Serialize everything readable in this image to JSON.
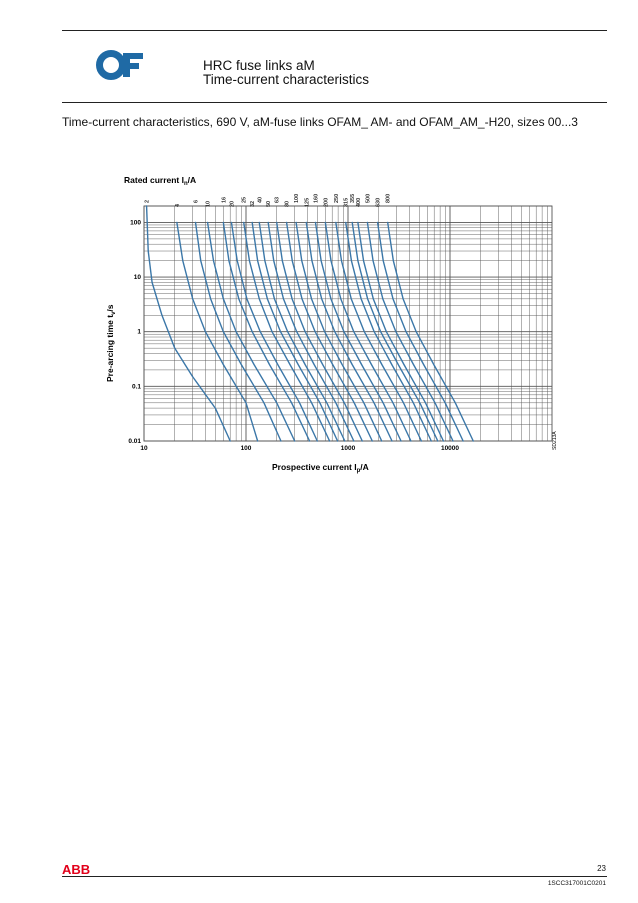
{
  "header": {
    "logo_text": "OF",
    "title": "HRC fuse links aM",
    "subtitle": "Time-current characteristics"
  },
  "caption": "Time-current characteristics, 690 V, aM-fuse links OFAM_ AM- and OFAM_AM_-H20, sizes 00...3",
  "colors": {
    "curve": "#3b77a8",
    "grid": "#555555",
    "logo": "#1f6aa5",
    "abb_red": "#e2001a"
  },
  "chart_data": {
    "type": "line",
    "title": "Rated current In/A",
    "title_main": "Rated current I",
    "title_sub": "n",
    "title_tail": "/A",
    "xlabel": "Prospective current Ip/A",
    "xlabel_main": "Prospective current I",
    "xlabel_sub": "p",
    "xlabel_tail": "/A",
    "ylabel": "Pre-arcing time tv/s",
    "ylabel_main": "Pre-arcing time t",
    "ylabel_sub": "v",
    "ylabel_tail": "/s",
    "x_scale": "log",
    "y_scale": "log",
    "xlim": [
      10,
      100000
    ],
    "ylim": [
      0.01,
      200
    ],
    "x_ticks": [
      "10",
      "100",
      "1000",
      "10000"
    ],
    "y_ticks": [
      "100",
      "10",
      "1",
      "0.1",
      "0.01"
    ],
    "grid": true,
    "side_code": "SD213A",
    "series": [
      {
        "name": "2",
        "points": [
          [
            10.6,
            200
          ],
          [
            11,
            30
          ],
          [
            12,
            8
          ],
          [
            15,
            2
          ],
          [
            20,
            0.5
          ],
          [
            30,
            0.15
          ],
          [
            50,
            0.04
          ],
          [
            70,
            0.01
          ]
        ]
      },
      {
        "name": "4",
        "points": [
          [
            21,
            100
          ],
          [
            24,
            20
          ],
          [
            30,
            4
          ],
          [
            40,
            1
          ],
          [
            60,
            0.25
          ],
          [
            100,
            0.05
          ],
          [
            130,
            0.01
          ]
        ]
      },
      {
        "name": "6",
        "points": [
          [
            32,
            100
          ],
          [
            36,
            20
          ],
          [
            45,
            4
          ],
          [
            60,
            1
          ],
          [
            90,
            0.25
          ],
          [
            150,
            0.05
          ],
          [
            220,
            0.01
          ]
        ]
      },
      {
        "name": "10",
        "points": [
          [
            42,
            100
          ],
          [
            48,
            20
          ],
          [
            60,
            4
          ],
          [
            80,
            1
          ],
          [
            120,
            0.25
          ],
          [
            200,
            0.05
          ],
          [
            300,
            0.01
          ]
        ]
      },
      {
        "name": "16",
        "points": [
          [
            60,
            100
          ],
          [
            68,
            20
          ],
          [
            85,
            4
          ],
          [
            115,
            1
          ],
          [
            170,
            0.25
          ],
          [
            280,
            0.05
          ],
          [
            420,
            0.01
          ]
        ]
      },
      {
        "name": "20",
        "points": [
          [
            72,
            100
          ],
          [
            82,
            20
          ],
          [
            102,
            4
          ],
          [
            138,
            1
          ],
          [
            205,
            0.25
          ],
          [
            335,
            0.05
          ],
          [
            500,
            0.01
          ]
        ]
      },
      {
        "name": "25",
        "points": [
          [
            95,
            100
          ],
          [
            108,
            20
          ],
          [
            135,
            4
          ],
          [
            180,
            1
          ],
          [
            270,
            0.25
          ],
          [
            440,
            0.05
          ],
          [
            660,
            0.01
          ]
        ]
      },
      {
        "name": "32",
        "points": [
          [
            115,
            100
          ],
          [
            130,
            20
          ],
          [
            162,
            4
          ],
          [
            218,
            1
          ],
          [
            325,
            0.25
          ],
          [
            530,
            0.05
          ],
          [
            790,
            0.01
          ]
        ]
      },
      {
        "name": "40",
        "points": [
          [
            135,
            100
          ],
          [
            153,
            20
          ],
          [
            190,
            4
          ],
          [
            256,
            1
          ],
          [
            380,
            0.25
          ],
          [
            620,
            0.05
          ],
          [
            930,
            0.01
          ]
        ]
      },
      {
        "name": "50",
        "points": [
          [
            165,
            100
          ],
          [
            187,
            20
          ],
          [
            233,
            4
          ],
          [
            314,
            1
          ],
          [
            466,
            0.25
          ],
          [
            760,
            0.05
          ],
          [
            1140,
            0.01
          ]
        ]
      },
      {
        "name": "63",
        "points": [
          [
            200,
            100
          ],
          [
            227,
            20
          ],
          [
            283,
            4
          ],
          [
            380,
            1
          ],
          [
            565,
            0.25
          ],
          [
            920,
            0.05
          ],
          [
            1380,
            0.01
          ]
        ]
      },
      {
        "name": "80",
        "points": [
          [
            250,
            100
          ],
          [
            284,
            20
          ],
          [
            354,
            4
          ],
          [
            476,
            1
          ],
          [
            708,
            0.25
          ],
          [
            1150,
            0.05
          ],
          [
            1730,
            0.01
          ]
        ]
      },
      {
        "name": "100",
        "points": [
          [
            310,
            100
          ],
          [
            352,
            20
          ],
          [
            439,
            4
          ],
          [
            590,
            1
          ],
          [
            877,
            0.25
          ],
          [
            1430,
            0.05
          ],
          [
            2140,
            0.01
          ]
        ]
      },
      {
        "name": "125",
        "points": [
          [
            390,
            100
          ],
          [
            443,
            20
          ],
          [
            552,
            4
          ],
          [
            742,
            1
          ],
          [
            1100,
            0.25
          ],
          [
            1800,
            0.05
          ],
          [
            2700,
            0.01
          ]
        ]
      },
      {
        "name": "160",
        "points": [
          [
            480,
            100
          ],
          [
            545,
            20
          ],
          [
            680,
            4
          ],
          [
            913,
            1
          ],
          [
            1360,
            0.25
          ],
          [
            2210,
            0.05
          ],
          [
            3310,
            0.01
          ]
        ]
      },
      {
        "name": "200",
        "points": [
          [
            600,
            100
          ],
          [
            681,
            20
          ],
          [
            850,
            4
          ],
          [
            1140,
            1
          ],
          [
            1700,
            0.25
          ],
          [
            2760,
            0.05
          ],
          [
            4140,
            0.01
          ]
        ]
      },
      {
        "name": "250",
        "points": [
          [
            760,
            100
          ],
          [
            863,
            20
          ],
          [
            1076,
            4
          ],
          [
            1445,
            1
          ],
          [
            2150,
            0.25
          ],
          [
            3500,
            0.05
          ],
          [
            5240,
            0.01
          ]
        ]
      },
      {
        "name": "315",
        "points": [
          [
            950,
            100
          ],
          [
            1080,
            20
          ],
          [
            1345,
            4
          ],
          [
            1806,
            1
          ],
          [
            2690,
            0.25
          ],
          [
            4370,
            0.05
          ],
          [
            6550,
            0.01
          ]
        ]
      },
      {
        "name": "355",
        "points": [
          [
            1100,
            100
          ],
          [
            1250,
            20
          ],
          [
            1557,
            4
          ],
          [
            2090,
            1
          ],
          [
            3110,
            0.25
          ],
          [
            5060,
            0.05
          ],
          [
            7590,
            0.01
          ]
        ]
      },
      {
        "name": "400",
        "points": [
          [
            1250,
            100
          ],
          [
            1420,
            20
          ],
          [
            1770,
            4
          ],
          [
            2377,
            1
          ],
          [
            3540,
            0.25
          ],
          [
            5750,
            0.05
          ],
          [
            8620,
            0.01
          ]
        ]
      },
      {
        "name": "500",
        "points": [
          [
            1550,
            100
          ],
          [
            1760,
            20
          ],
          [
            2195,
            4
          ],
          [
            2947,
            1
          ],
          [
            4390,
            0.25
          ],
          [
            7130,
            0.05
          ],
          [
            10700,
            0.01
          ]
        ]
      },
      {
        "name": "630",
        "points": [
          [
            1950,
            100
          ],
          [
            2214,
            20
          ],
          [
            2762,
            4
          ],
          [
            3708,
            1
          ],
          [
            5520,
            0.25
          ],
          [
            8970,
            0.05
          ],
          [
            13450,
            0.01
          ]
        ]
      },
      {
        "name": "800",
        "points": [
          [
            2450,
            100
          ],
          [
            2782,
            20
          ],
          [
            3470,
            4
          ],
          [
            4660,
            1
          ],
          [
            6940,
            0.25
          ],
          [
            11270,
            0.05
          ],
          [
            16900,
            0.01
          ]
        ]
      }
    ]
  },
  "footer": {
    "logo_text": "ABB",
    "page_number": "23",
    "doc_number": "1SCC317001C0201"
  }
}
